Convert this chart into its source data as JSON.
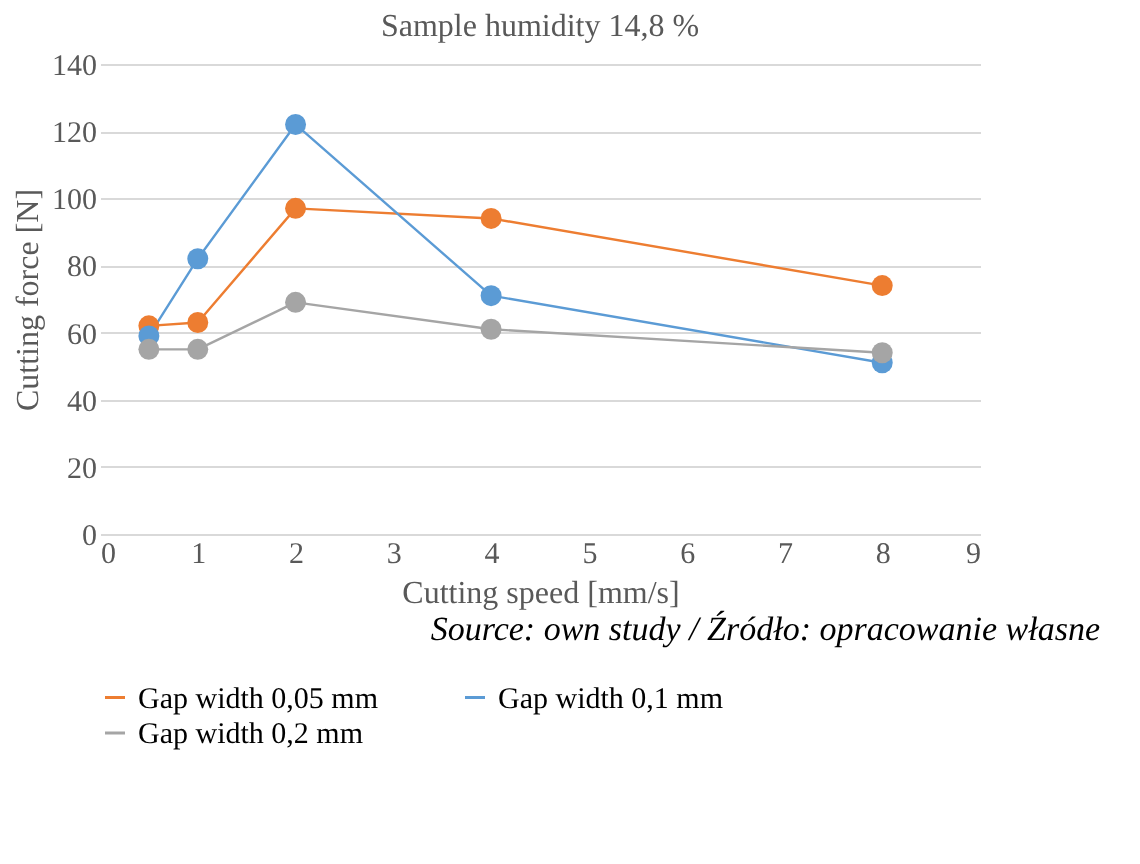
{
  "chart_data": {
    "type": "line",
    "title": "Sample humidity 14,8 %",
    "xlabel": "Cutting speed [mm/s]",
    "ylabel": "Cutting force [N]",
    "x": [
      0.5,
      1,
      2,
      4,
      8
    ],
    "series": [
      {
        "name": "Gap width 0,05 mm",
        "color": "#ed7d31",
        "values": [
          62,
          63,
          97,
          94,
          74
        ]
      },
      {
        "name": "Gap width 0,1 mm",
        "color": "#5b9bd5",
        "values": [
          59,
          82,
          122,
          71,
          51
        ]
      },
      {
        "name": "Gap width 0,2 mm",
        "color": "#a5a5a5",
        "values": [
          55,
          55,
          69,
          61,
          54
        ]
      }
    ],
    "xlim": [
      0,
      9
    ],
    "xticks": [
      0,
      1,
      2,
      3,
      4,
      5,
      6,
      7,
      8,
      9
    ],
    "ylim": [
      0,
      140
    ],
    "yticks": [
      0,
      20,
      40,
      60,
      80,
      100,
      120,
      140
    ],
    "grid": "y",
    "legend": "bottom",
    "marker": "circle",
    "line_style": "solid",
    "annotations": [
      "Source: own study / Źródło: opracowanie własne"
    ]
  }
}
